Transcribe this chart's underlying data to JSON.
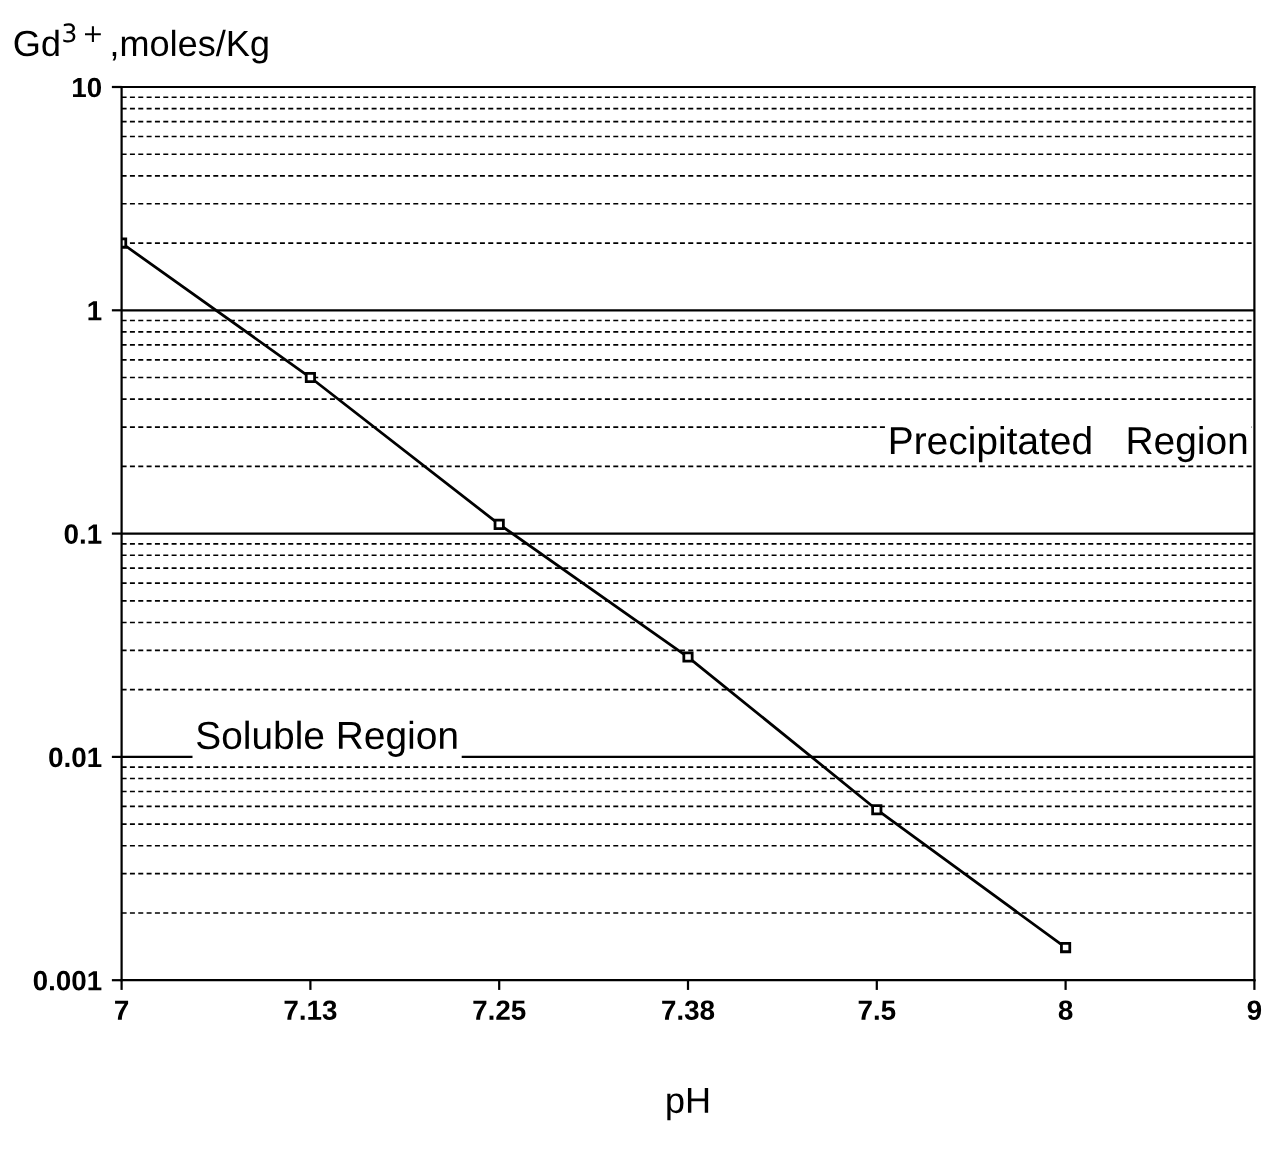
{
  "chart_data": {
    "type": "line",
    "xlabel": "pH",
    "ylabel": "Gd$^{3+}$,moles/Kg",
    "categories": [
      "7",
      "7.13",
      "7.25",
      "7.38",
      "7.5",
      "8",
      "9"
    ],
    "series": [
      {
        "color": "#000000",
        "values": [
          2,
          0.5,
          0.11,
          0.028,
          0.0058,
          0.0014,
          null
        ]
      }
    ],
    "log": "y",
    "ylim": [
      0.001,
      10
    ],
    "yticks": [
      0.001,
      0.01,
      0.1,
      1,
      10
    ],
    "grid": "y",
    "marker": "square",
    "line_style": "solid",
    "annotations": [
      "Precipitated   Region",
      "Soluble Region"
    ]
  }
}
